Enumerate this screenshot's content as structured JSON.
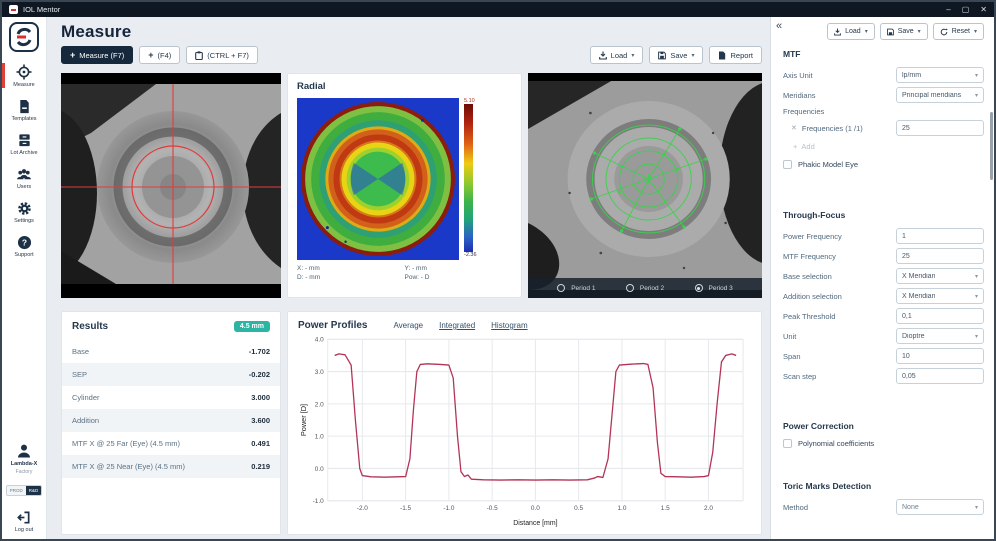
{
  "titlebar": {
    "app_name": "IOL Mentor",
    "minimize": "–",
    "maximize": "▢",
    "close": "✕"
  },
  "sidebar": {
    "items": [
      {
        "label": "Measure",
        "icon": "target-icon",
        "active": true
      },
      {
        "label": "Templates",
        "icon": "document-icon",
        "active": false
      },
      {
        "label": "Lot Archive",
        "icon": "archive-icon",
        "active": false
      },
      {
        "label": "Users",
        "icon": "users-icon",
        "active": false
      },
      {
        "label": "Settings",
        "icon": "gear-icon",
        "active": false
      },
      {
        "label": "Support",
        "icon": "help-icon",
        "active": false
      }
    ],
    "account": {
      "name": "Lambda-X",
      "subtitle": "Factory"
    },
    "env_toggle": {
      "options": [
        "PROD",
        "R&D"
      ],
      "selected": "R&D"
    },
    "logout_label": "Log out"
  },
  "header": {
    "title": "Measure",
    "measure_button": "Measure (F7)",
    "quick_button": "(F4)",
    "ctrl_button": "(CTRL + F7)",
    "load_button": "Load",
    "save_button": "Save",
    "report_button": "Report"
  },
  "radial_panel": {
    "title": "Radial",
    "colorbar_max": "5.10",
    "colorbar_min": "-2.36",
    "info_x": "X: - mm",
    "info_y": "Y: - mm",
    "info_d": "D: - mm",
    "info_power": "Pow: - D"
  },
  "overlay_panel": {
    "periods": [
      {
        "label": "Period 1"
      },
      {
        "label": "Period 2"
      },
      {
        "label": "Period 3"
      }
    ],
    "selected": "Period 3"
  },
  "results": {
    "title": "Results",
    "badge": "4.5 mm",
    "rows": [
      {
        "label": "Base",
        "value": "-1.702"
      },
      {
        "label": "SEP",
        "value": "-0.202"
      },
      {
        "label": "Cylinder",
        "value": "3.000"
      },
      {
        "label": "Addition",
        "value": "3.600"
      },
      {
        "label": "MTF X @ 25 Far (Eye) (4.5 mm)",
        "value": "0.491"
      },
      {
        "label": "MTF X @ 25 Near (Eye) (4.5 mm)",
        "value": "0.219"
      }
    ]
  },
  "power_profiles": {
    "title": "Power Profiles",
    "tab_average": "Average",
    "tab_integrated": "Integrated",
    "tab_histogram": "Histogram",
    "active_tab": "Average"
  },
  "chart_data": {
    "type": "line",
    "title": "Power Profiles (Average)",
    "xlabel": "Distance [mm]",
    "ylabel": "Power [D]",
    "xlim": [
      -2.4,
      2.4
    ],
    "ylim": [
      -1.0,
      4.0
    ],
    "x_ticks": [
      -2.0,
      -1.5,
      -1.0,
      -0.5,
      0.0,
      0.5,
      1.0,
      1.5,
      2.0
    ],
    "y_ticks": [
      -1.0,
      0.0,
      1.0,
      2.0,
      3.0,
      4.0
    ],
    "grid": true,
    "legend": "none",
    "line_color": "#b23456",
    "series": [
      {
        "name": "Average",
        "points": [
          [
            -2.32,
            3.5
          ],
          [
            -2.27,
            3.55
          ],
          [
            -2.2,
            3.52
          ],
          [
            -2.13,
            3.2
          ],
          [
            -2.08,
            1.5
          ],
          [
            -2.03,
            0.0
          ],
          [
            -2.0,
            -0.22
          ],
          [
            -1.9,
            -0.26
          ],
          [
            -1.75,
            -0.27
          ],
          [
            -1.6,
            -0.26
          ],
          [
            -1.5,
            -0.25
          ],
          [
            -1.45,
            0.3
          ],
          [
            -1.41,
            1.8
          ],
          [
            -1.37,
            3.0
          ],
          [
            -1.33,
            3.22
          ],
          [
            -1.25,
            3.24
          ],
          [
            -1.1,
            3.22
          ],
          [
            -1.0,
            3.2
          ],
          [
            -0.95,
            2.8
          ],
          [
            -0.9,
            1.0
          ],
          [
            -0.86,
            -0.1
          ],
          [
            -0.82,
            -0.25
          ],
          [
            -0.78,
            -0.2
          ],
          [
            -0.74,
            -0.33
          ],
          [
            -0.6,
            -0.35
          ],
          [
            -0.4,
            -0.36
          ],
          [
            -0.2,
            -0.35
          ],
          [
            0.0,
            -0.36
          ],
          [
            0.2,
            -0.35
          ],
          [
            0.4,
            -0.36
          ],
          [
            0.6,
            -0.35
          ],
          [
            0.68,
            -0.3
          ],
          [
            0.72,
            -0.25
          ],
          [
            0.78,
            -0.28
          ],
          [
            0.84,
            0.3
          ],
          [
            0.89,
            1.8
          ],
          [
            0.93,
            3.0
          ],
          [
            0.97,
            3.2
          ],
          [
            1.1,
            3.23
          ],
          [
            1.25,
            3.25
          ],
          [
            1.3,
            3.22
          ],
          [
            1.36,
            2.5
          ],
          [
            1.41,
            0.8
          ],
          [
            1.45,
            -0.15
          ],
          [
            1.5,
            -0.25
          ],
          [
            1.65,
            -0.26
          ],
          [
            1.8,
            -0.27
          ],
          [
            1.95,
            -0.25
          ],
          [
            2.0,
            -0.22
          ],
          [
            2.05,
            0.5
          ],
          [
            2.1,
            2.0
          ],
          [
            2.15,
            3.3
          ],
          [
            2.2,
            3.5
          ],
          [
            2.27,
            3.55
          ],
          [
            2.32,
            3.5
          ]
        ]
      }
    ]
  },
  "settings": {
    "collapse_icon": "«",
    "load_button": "Load",
    "save_button": "Save",
    "reset_button": "Reset",
    "mtf": {
      "title": "MTF",
      "axis_unit_label": "Axis Unit",
      "axis_unit_value": "lp/mm",
      "meridians_label": "Meridians",
      "meridians_value": "Principal meridians",
      "frequencies_label": "Frequencies",
      "frequency_item_label": "Frequencies (1 /1)",
      "frequency_value": "25",
      "add_label": "Add",
      "phakic_label": "Phakic Model Eye",
      "phakic_checked": false
    },
    "through_focus": {
      "title": "Through-Focus",
      "fields": [
        {
          "label": "Power Frequency",
          "value": "1",
          "type": "input"
        },
        {
          "label": "MTF Frequency",
          "value": "25",
          "type": "input"
        },
        {
          "label": "Base selection",
          "value": "X Meridian",
          "type": "select"
        },
        {
          "label": "Addition selection",
          "value": "X Meridian",
          "type": "select"
        },
        {
          "label": "Peak Threshold",
          "value": "0,1",
          "type": "input"
        },
        {
          "label": "Unit",
          "value": "Dioptre",
          "type": "select"
        },
        {
          "label": "Span",
          "value": "10",
          "type": "input"
        },
        {
          "label": "Scan step",
          "value": "0,05",
          "type": "input"
        }
      ]
    },
    "power_correction": {
      "title": "Power Correction",
      "polynomial_label": "Polynomial coefficients",
      "polynomial_checked": false
    },
    "toric": {
      "title": "Toric Marks Detection",
      "method_label": "Method",
      "method_value": "None"
    }
  },
  "colors": {
    "accent_red": "#e0403c",
    "navy": "#16283c",
    "teal_badge": "#2cb5a3",
    "chart_line": "#b23456",
    "colorbar_top": "#6e0b06",
    "colorbar_bottom": "#1b2fb0"
  }
}
